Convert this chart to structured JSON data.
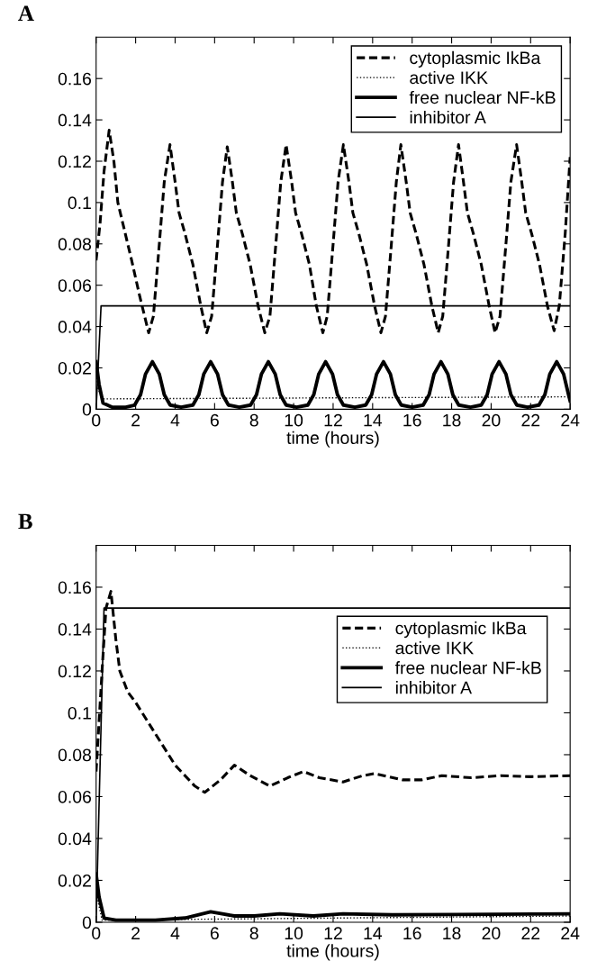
{
  "chart_data": [
    {
      "type": "line",
      "title": "A",
      "xlabel": "time (hours)",
      "xlim": [
        0,
        24
      ],
      "ylim": [
        0,
        0.18
      ],
      "xticks": [
        0,
        2,
        4,
        6,
        8,
        10,
        12,
        14,
        16,
        18,
        20,
        22,
        24
      ],
      "yticks": [
        0,
        0.02,
        0.04,
        0.06,
        0.08,
        0.1,
        0.12,
        0.14,
        0.16
      ],
      "grid": false,
      "legend": "top right",
      "series": [
        {
          "name": "cytoplasmic IkBa",
          "color": "#000000",
          "line_style": "dashed",
          "x": [
            0,
            0.2,
            0.4,
            0.66,
            0.9,
            1.1,
            1.4,
            1.8,
            2.2,
            2.66,
            2.9,
            3.2,
            3.45,
            3.74,
            4.0,
            4.2,
            4.5,
            4.9,
            5.3,
            5.6,
            5.85,
            6.15,
            6.4,
            6.64,
            6.9,
            7.1,
            7.4,
            7.8,
            8.2,
            8.54,
            8.8,
            9.1,
            9.35,
            9.62,
            9.9,
            10.1,
            10.4,
            10.8,
            11.15,
            11.48,
            11.7,
            12.0,
            12.25,
            12.52,
            12.8,
            13.0,
            13.3,
            13.7,
            14.1,
            14.42,
            14.65,
            14.95,
            15.2,
            15.43,
            15.7,
            15.9,
            16.2,
            16.6,
            17.0,
            17.32,
            17.55,
            17.85,
            18.1,
            18.35,
            18.6,
            18.8,
            19.1,
            19.5,
            19.9,
            20.2,
            20.45,
            20.75,
            21.0,
            21.29,
            21.55,
            21.75,
            22.05,
            22.45,
            22.85,
            23.19,
            23.45,
            23.75,
            24
          ],
          "values": [
            0.072,
            0.09,
            0.115,
            0.135,
            0.12,
            0.1,
            0.088,
            0.072,
            0.055,
            0.037,
            0.045,
            0.08,
            0.11,
            0.128,
            0.11,
            0.095,
            0.085,
            0.07,
            0.05,
            0.037,
            0.045,
            0.08,
            0.11,
            0.127,
            0.11,
            0.095,
            0.085,
            0.07,
            0.05,
            0.037,
            0.045,
            0.08,
            0.11,
            0.128,
            0.11,
            0.095,
            0.085,
            0.07,
            0.05,
            0.037,
            0.045,
            0.08,
            0.11,
            0.128,
            0.11,
            0.095,
            0.085,
            0.07,
            0.05,
            0.037,
            0.045,
            0.08,
            0.11,
            0.128,
            0.11,
            0.095,
            0.085,
            0.07,
            0.05,
            0.037,
            0.045,
            0.08,
            0.11,
            0.128,
            0.11,
            0.095,
            0.085,
            0.07,
            0.05,
            0.037,
            0.045,
            0.08,
            0.11,
            0.128,
            0.11,
            0.095,
            0.085,
            0.07,
            0.05,
            0.038,
            0.05,
            0.085,
            0.122
          ]
        },
        {
          "name": "active IKK",
          "color": "#000000",
          "line_style": "dotted",
          "x": [
            0,
            0.1,
            0.3,
            24
          ],
          "values": [
            0.02,
            0.01,
            0.005,
            0.006
          ]
        },
        {
          "name": "free nuclear NF-kB",
          "color": "#000000",
          "line_style": "solid",
          "x": [
            0,
            0.15,
            0.35,
            0.8,
            1.5,
            1.95,
            2.25,
            2.5,
            2.85,
            3.2,
            3.45,
            3.75,
            4.3,
            4.9,
            5.2,
            5.45,
            5.8,
            6.15,
            6.4,
            6.7,
            7.25,
            7.82,
            8.12,
            8.37,
            8.72,
            9.07,
            9.32,
            9.62,
            10.15,
            10.72,
            11.02,
            11.27,
            11.62,
            11.97,
            12.22,
            12.52,
            13.1,
            13.65,
            13.95,
            14.2,
            14.55,
            14.9,
            15.15,
            15.45,
            16.0,
            16.56,
            16.86,
            17.11,
            17.46,
            17.81,
            18.06,
            18.36,
            18.95,
            19.5,
            19.8,
            20.05,
            20.4,
            20.75,
            21.0,
            21.3,
            21.85,
            22.42,
            22.72,
            22.97,
            23.32,
            23.67,
            23.92,
            24
          ],
          "values": [
            0.023,
            0.012,
            0.003,
            0.001,
            0.001,
            0.002,
            0.007,
            0.017,
            0.023,
            0.017,
            0.007,
            0.002,
            0.001,
            0.002,
            0.007,
            0.017,
            0.023,
            0.017,
            0.007,
            0.002,
            0.001,
            0.002,
            0.007,
            0.017,
            0.023,
            0.017,
            0.007,
            0.002,
            0.001,
            0.002,
            0.007,
            0.017,
            0.023,
            0.017,
            0.007,
            0.002,
            0.001,
            0.002,
            0.007,
            0.017,
            0.023,
            0.017,
            0.007,
            0.002,
            0.001,
            0.002,
            0.007,
            0.017,
            0.023,
            0.017,
            0.007,
            0.002,
            0.001,
            0.002,
            0.007,
            0.017,
            0.023,
            0.017,
            0.007,
            0.002,
            0.001,
            0.002,
            0.007,
            0.017,
            0.023,
            0.017,
            0.007,
            0.004
          ]
        },
        {
          "name": "inhibitor A",
          "color": "#000000",
          "line_style": "solid",
          "x": [
            0,
            0.25,
            24
          ],
          "values": [
            0,
            0.05,
            0.05
          ]
        }
      ]
    },
    {
      "type": "line",
      "title": "B",
      "xlabel": "time (hours)",
      "xlim": [
        0,
        24
      ],
      "ylim": [
        0,
        0.18
      ],
      "xticks": [
        0,
        2,
        4,
        6,
        8,
        10,
        12,
        14,
        16,
        18,
        20,
        22,
        24
      ],
      "yticks": [
        0,
        0.02,
        0.04,
        0.06,
        0.08,
        0.1,
        0.12,
        0.14,
        0.16
      ],
      "grid": false,
      "legend": "right",
      "series": [
        {
          "name": "cytoplasmic IkBa",
          "color": "#000000",
          "line_style": "dashed",
          "x": [
            0,
            0.3,
            0.5,
            0.75,
            1.0,
            1.2,
            1.6,
            2,
            3,
            4,
            5,
            5.5,
            6.3,
            7,
            7.8,
            8.8,
            9.7,
            10.5,
            11.3,
            12.5,
            13.5,
            14.1,
            15.5,
            16.5,
            17.5,
            19,
            20.5,
            22,
            24
          ],
          "values": [
            0.072,
            0.12,
            0.15,
            0.158,
            0.135,
            0.12,
            0.11,
            0.105,
            0.09,
            0.075,
            0.065,
            0.062,
            0.068,
            0.075,
            0.07,
            0.065,
            0.069,
            0.072,
            0.069,
            0.067,
            0.07,
            0.071,
            0.068,
            0.068,
            0.07,
            0.069,
            0.07,
            0.0695,
            0.07
          ]
        },
        {
          "name": "active IKK",
          "color": "#000000",
          "line_style": "dotted",
          "x": [
            0,
            0.1,
            0.3,
            24
          ],
          "values": [
            0.02,
            0.01,
            0.001,
            0.003
          ]
        },
        {
          "name": "free nuclear NF-kB",
          "color": "#000000",
          "line_style": "solid",
          "x": [
            0,
            0.15,
            0.4,
            1,
            3,
            4.5,
            5.8,
            7,
            8,
            9.3,
            11,
            12.5,
            15,
            24
          ],
          "values": [
            0.023,
            0.012,
            0.002,
            0.001,
            0.001,
            0.002,
            0.005,
            0.003,
            0.003,
            0.004,
            0.003,
            0.004,
            0.0035,
            0.004
          ]
        },
        {
          "name": "inhibitor A",
          "color": "#000000",
          "line_style": "solid",
          "x": [
            0,
            0.4,
            24
          ],
          "values": [
            0,
            0.15,
            0.15
          ]
        }
      ]
    }
  ]
}
